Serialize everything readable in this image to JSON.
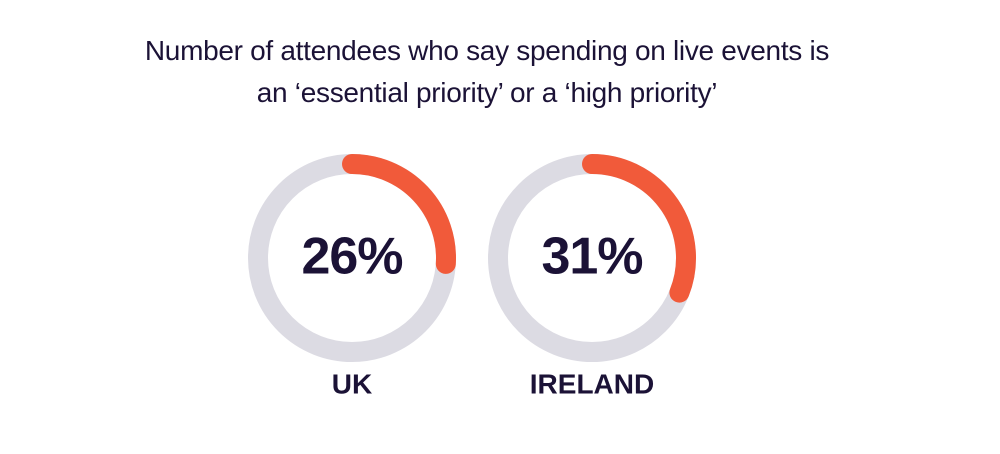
{
  "chart_data": {
    "type": "donut",
    "title": "Number of attendees who say spending on live events is an ‘essential priority’ or a ‘high priority’",
    "categories": [
      "UK",
      "IRELAND"
    ],
    "values": [
      26,
      31
    ],
    "value_labels": [
      "26%",
      "31%"
    ],
    "color": "#f15a3a",
    "track_color": "#dcdbe3"
  }
}
